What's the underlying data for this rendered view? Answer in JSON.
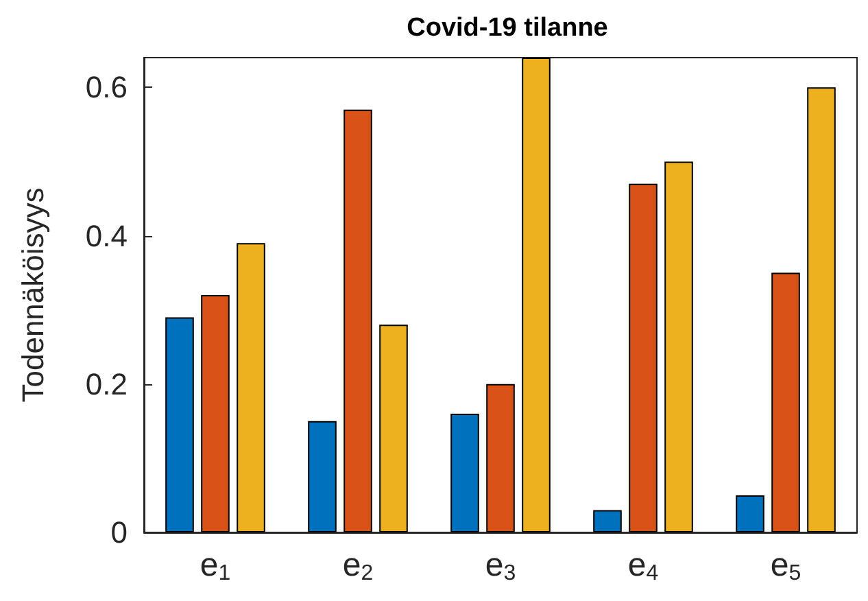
{
  "chart_data": {
    "type": "bar",
    "title": "Covid-19 tilanne",
    "ylabel": "Todennäköisyys",
    "categories": [
      "e$_{1}$",
      "e$_{2}$",
      "e$_{3}$",
      "e$_{4}$",
      "e$_{5}$"
    ],
    "series": [
      {
        "color": "#0072bd",
        "values": [
          0.29,
          0.15,
          0.16,
          0.03,
          0.05
        ]
      },
      {
        "color": "#d95319",
        "values": [
          0.32,
          0.57,
          0.2,
          0.47,
          0.35
        ]
      },
      {
        "color": "#edb120",
        "values": [
          0.39,
          0.28,
          0.64,
          0.5,
          0.6
        ]
      }
    ],
    "ylim": [
      0,
      0.64
    ],
    "yticks": [
      0,
      0.2,
      0.4,
      0.6
    ],
    "grid": false
  }
}
